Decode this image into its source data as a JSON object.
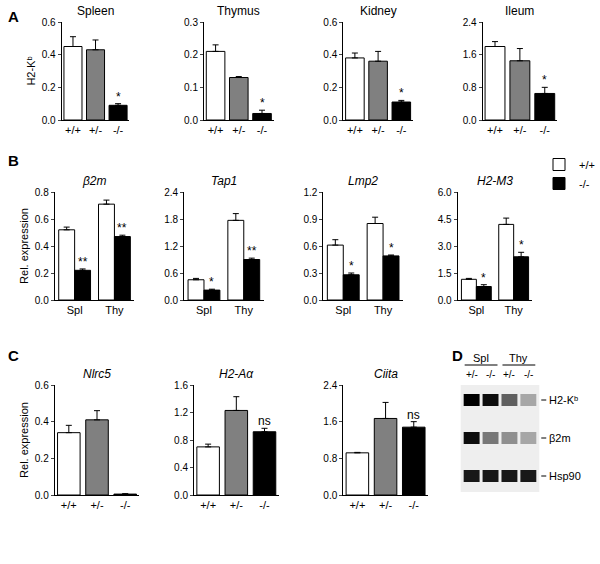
{
  "chart_data": [
    {
      "panel": "A",
      "type": "bar",
      "title": "Spleen",
      "y_label": "H2-Kᵇ",
      "categories": [
        "+/+",
        "+/-",
        "-/-"
      ],
      "values": [
        0.45,
        0.43,
        0.09
      ],
      "errors": [
        0.06,
        0.06,
        0.01
      ],
      "colors": [
        "#ffffff",
        "#808080",
        "#000000"
      ],
      "marks": [
        null,
        null,
        "*"
      ],
      "ylim": [
        0,
        0.6
      ],
      "yticks": [
        {
          "value": 0,
          "label": "0.0"
        },
        0.2,
        0.4,
        0.6
      ]
    },
    {
      "type": "bar",
      "title": "Thymus",
      "categories": [
        "+/+",
        "+/-",
        "-/-"
      ],
      "values": [
        0.21,
        0.13,
        0.02
      ],
      "errors": [
        0.02,
        0.003,
        0.01
      ],
      "colors": [
        "#ffffff",
        "#808080",
        "#000000"
      ],
      "marks": [
        null,
        null,
        "*"
      ],
      "ylim": [
        0,
        0.3
      ],
      "yticks": [
        {
          "value": 0,
          "label": "0.0"
        },
        0.1,
        0.2,
        0.3
      ]
    },
    {
      "type": "bar",
      "title": "Kidney",
      "categories": [
        "+/+",
        "+/-",
        "-/-"
      ],
      "values": [
        0.38,
        0.36,
        0.11
      ],
      "errors": [
        0.03,
        0.06,
        0.01
      ],
      "colors": [
        "#ffffff",
        "#808080",
        "#000000"
      ],
      "marks": [
        null,
        null,
        "*"
      ],
      "ylim": [
        0,
        0.6
      ],
      "yticks": [
        {
          "value": 0,
          "label": "0.0"
        },
        0.2,
        0.4,
        0.6
      ]
    },
    {
      "type": "bar",
      "title": "Ileum",
      "categories": [
        "+/+",
        "+/-",
        "-/-"
      ],
      "values": [
        1.8,
        1.45,
        0.65
      ],
      "errors": [
        0.12,
        0.3,
        0.15
      ],
      "colors": [
        "#ffffff",
        "#808080",
        "#000000"
      ],
      "marks": [
        null,
        null,
        "*"
      ],
      "ylim": [
        0,
        2.4
      ],
      "yticks": [
        {
          "value": 0,
          "label": "0.0"
        },
        0.8,
        1.6,
        2.4
      ]
    },
    {
      "panel": "B",
      "type": "bar",
      "title": "β2m",
      "y_label": "Rel. expression",
      "categories": [
        "Spl",
        "Thy"
      ],
      "series": [
        {
          "name": "+/+",
          "color": "#ffffff",
          "values": [
            0.52,
            0.71
          ],
          "errors": [
            0.02,
            0.03
          ],
          "marks": [
            null,
            null
          ]
        },
        {
          "name": "-/-",
          "color": "#000000",
          "values": [
            0.22,
            0.47
          ],
          "errors": [
            0.01,
            0.01
          ],
          "marks": [
            "**",
            "**"
          ]
        }
      ],
      "ylim": [
        0,
        0.8
      ],
      "yticks": [
        {
          "value": 0,
          "label": "0.0"
        },
        0.2,
        0.4,
        0.6,
        0.8
      ]
    },
    {
      "type": "bar",
      "title": "Tap1",
      "categories": [
        "Spl",
        "Thy"
      ],
      "series": [
        {
          "name": "+/+",
          "color": "#ffffff",
          "values": [
            0.45,
            1.77
          ],
          "errors": [
            0.03,
            0.15
          ],
          "marks": [
            null,
            null
          ]
        },
        {
          "name": "-/-",
          "color": "#000000",
          "values": [
            0.22,
            0.9
          ],
          "errors": [
            0.02,
            0.03
          ],
          "marks": [
            "*",
            "**"
          ]
        }
      ],
      "ylim": [
        0,
        2.4
      ],
      "yticks": [
        {
          "value": 0,
          "label": "0.0"
        },
        0.6,
        1.2,
        1.8,
        2.4
      ]
    },
    {
      "type": "bar",
      "title": "Lmp2",
      "categories": [
        "Spl",
        "Thy"
      ],
      "series": [
        {
          "name": "+/+",
          "color": "#ffffff",
          "values": [
            0.61,
            0.85
          ],
          "errors": [
            0.06,
            0.07
          ],
          "marks": [
            null,
            null
          ]
        },
        {
          "name": "-/-",
          "color": "#000000",
          "values": [
            0.28,
            0.49
          ],
          "errors": [
            0.02,
            0.01
          ],
          "marks": [
            "*",
            "*"
          ]
        }
      ],
      "ylim": [
        0,
        1.2
      ],
      "yticks": [
        {
          "value": 0,
          "label": "0.0"
        },
        0.3,
        0.6,
        0.9,
        1.2
      ]
    },
    {
      "type": "bar",
      "title": "H2-M3",
      "legend": "right",
      "categories": [
        "Spl",
        "Thy"
      ],
      "series": [
        {
          "name": "+/+",
          "color": "#ffffff",
          "values": [
            1.15,
            4.2
          ],
          "errors": [
            0.05,
            0.35
          ],
          "marks": [
            null,
            null
          ]
        },
        {
          "name": "-/-",
          "color": "#000000",
          "values": [
            0.75,
            2.4
          ],
          "errors": [
            0.1,
            0.25
          ],
          "marks": [
            "*",
            "*"
          ]
        }
      ],
      "ylim": [
        0,
        6
      ],
      "yticks": [
        {
          "value": 0,
          "label": "0.0"
        },
        1.5,
        {
          "value": 3,
          "label": "3.0"
        },
        4.5,
        {
          "value": 6,
          "label": "6.0"
        }
      ]
    },
    {
      "panel": "C",
      "type": "bar",
      "title": "Nlrc5",
      "y_label": "Rel. expression",
      "categories": [
        "+/+",
        "+/-",
        "-/-"
      ],
      "values": [
        0.34,
        0.41,
        0.005
      ],
      "errors": [
        0.04,
        0.05,
        0.002
      ],
      "colors": [
        "#ffffff",
        "#808080",
        "#000000"
      ],
      "marks": [
        null,
        null,
        null
      ],
      "ylim": [
        0,
        0.6
      ],
      "yticks": [
        {
          "value": 0,
          "label": "0.0"
        },
        0.2,
        0.4,
        0.6
      ]
    },
    {
      "type": "bar",
      "title": "H2-Aα",
      "categories": [
        "+/+",
        "+/-",
        "-/-"
      ],
      "values": [
        0.7,
        1.23,
        0.92
      ],
      "errors": [
        0.04,
        0.2,
        0.05
      ],
      "colors": [
        "#ffffff",
        "#808080",
        "#000000"
      ],
      "marks": [
        null,
        null,
        "ns"
      ],
      "ylim": [
        0,
        1.6
      ],
      "yticks": [
        {
          "value": 0,
          "label": "0.0"
        },
        0.4,
        0.8,
        1.2,
        1.6
      ]
    },
    {
      "type": "bar",
      "title": "Ciita",
      "categories": [
        "+/+",
        "+/-",
        "-/-"
      ],
      "values": [
        0.92,
        1.67,
        1.48
      ],
      "errors": [
        0.01,
        0.35,
        0.12
      ],
      "colors": [
        "#ffffff",
        "#808080",
        "#000000"
      ],
      "marks": [
        null,
        null,
        "ns"
      ],
      "ylim": [
        0,
        2.4
      ],
      "yticks": [
        {
          "value": 0,
          "label": "0.0"
        },
        0.8,
        1.6,
        2.4
      ]
    }
  ],
  "blot": {
    "panel": "D",
    "groups": [
      "Spl",
      "Thy"
    ],
    "lanes": [
      "+/-",
      "-/-",
      "+/-",
      "-/-"
    ],
    "bands": [
      {
        "label": "H2-Kᵇ",
        "intensity": [
          1.0,
          0.95,
          0.6,
          0.3
        ]
      },
      {
        "label": "β2m",
        "intensity": [
          0.95,
          0.5,
          0.4,
          0.3
        ]
      },
      {
        "label": "Hsp90",
        "intensity": [
          0.9,
          0.9,
          0.9,
          0.9
        ]
      }
    ]
  }
}
